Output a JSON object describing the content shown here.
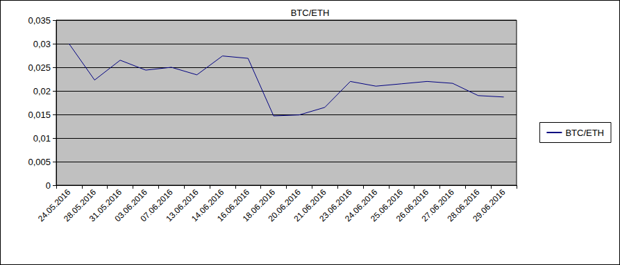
{
  "chart_data": {
    "type": "line",
    "title": "BTC/ETH",
    "categories": [
      "24.05.2016",
      "28.05.2016",
      "31.05.2016",
      "03.06.2016",
      "07.06.2016",
      "13.06.2016",
      "14.06.2016",
      "16.06.2016",
      "18.06.2016",
      "20.06.2016",
      "21.06.2016",
      "23.06.2016",
      "24.06.2016",
      "25.06.2016",
      "26.06.2016",
      "27.06.2016",
      "28.06.2016",
      "29.06.2016"
    ],
    "series": [
      {
        "name": "BTC/ETH",
        "color": "#000080",
        "values": [
          0.03,
          0.0223,
          0.0265,
          0.0244,
          0.025,
          0.0234,
          0.0274,
          0.0269,
          0.0147,
          0.0149,
          0.0165,
          0.022,
          0.021,
          0.0215,
          0.022,
          0.0216,
          0.019,
          0.0187
        ]
      }
    ],
    "ylim": [
      0,
      0.035
    ],
    "yticks": [
      0,
      {
        "value": 0.005,
        "label": "0,005"
      },
      {
        "value": 0.01,
        "label": "0,01"
      },
      {
        "value": 0.015,
        "label": "0,015"
      },
      {
        "value": 0.02,
        "label": "0,02"
      },
      {
        "value": 0.025,
        "label": "0,025"
      },
      {
        "value": 0.03,
        "label": "0,03"
      },
      {
        "value": 0.035,
        "label": "0,035"
      }
    ],
    "grid": true,
    "legend": "right"
  }
}
